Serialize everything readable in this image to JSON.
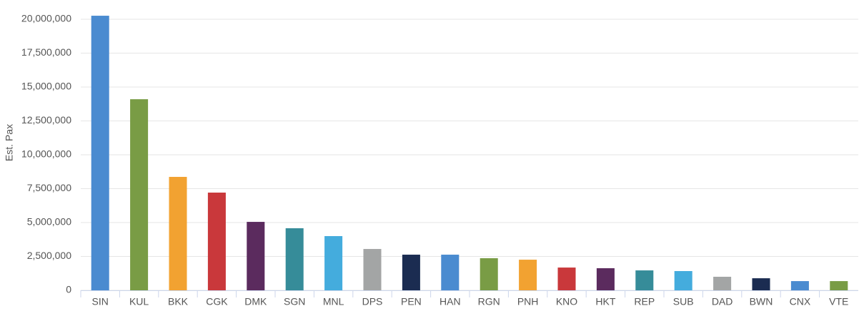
{
  "chart_data": {
    "type": "bar",
    "y_label": "Est. Pax",
    "categories": [
      "SIN",
      "KUL",
      "BKK",
      "CGK",
      "DMK",
      "SGN",
      "MNL",
      "DPS",
      "PEN",
      "HAN",
      "RGN",
      "PNH",
      "KNO",
      "HKT",
      "REP",
      "SUB",
      "DAD",
      "BWN",
      "CNX",
      "VTE"
    ],
    "values": [
      20260000,
      14100000,
      8370000,
      7210000,
      5050000,
      4580000,
      4000000,
      3050000,
      2630000,
      2630000,
      2370000,
      2260000,
      1680000,
      1630000,
      1470000,
      1420000,
      1000000,
      890000,
      680000,
      680000
    ],
    "colors": [
      "#4a8bd0",
      "#799c45",
      "#f2a231",
      "#c9383b",
      "#5b2b5e",
      "#368c99",
      "#44acdd",
      "#a3a5a5",
      "#1b2c51",
      "#4a8bd0",
      "#799c45",
      "#f2a231",
      "#c9383b",
      "#5b2b5e",
      "#368c99",
      "#44acdd",
      "#a3a5a5",
      "#1b2c51",
      "#4a8bd0",
      "#799c45"
    ],
    "ylim": [
      0,
      20000000
    ],
    "yticks": [
      0,
      {
        "value": 2500000,
        "label": "2,500,000"
      },
      {
        "value": 5000000,
        "label": "5,000,000"
      },
      {
        "value": 7500000,
        "label": "7,500,000"
      },
      {
        "value": 10000000,
        "label": "10,000,000"
      },
      {
        "value": 12500000,
        "label": "12,500,000"
      },
      {
        "value": 15000000,
        "label": "15,000,000"
      },
      {
        "value": 17500000,
        "label": "17,500,000"
      },
      {
        "value": 20000000,
        "label": "20,000,000"
      }
    ],
    "grid": true
  }
}
